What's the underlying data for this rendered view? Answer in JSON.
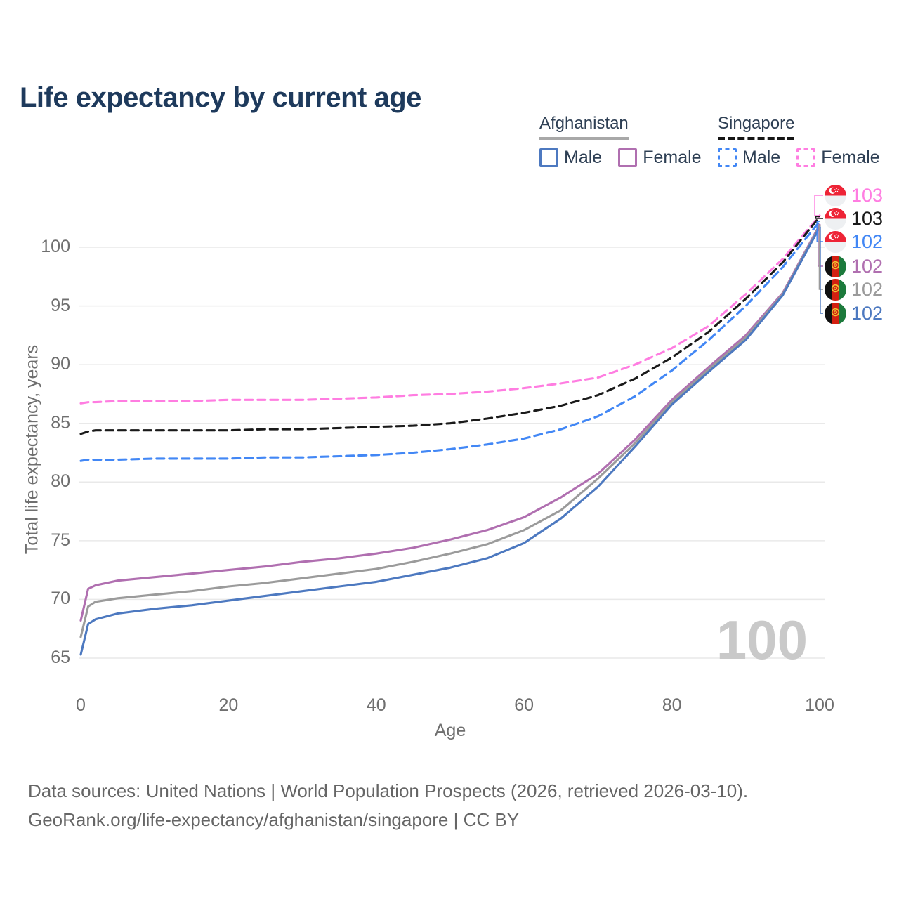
{
  "title": "Life expectancy by current age",
  "legend": {
    "groups": [
      {
        "id": "afghanistan",
        "label": "Afghanistan",
        "line_style": "solid",
        "underline_color": "#a8a8a8",
        "items": [
          {
            "label": "Male",
            "color": "#4d79c0",
            "dash": false
          },
          {
            "label": "Female",
            "color": "#b06fb0",
            "dash": false
          }
        ]
      },
      {
        "id": "singapore",
        "label": "Singapore",
        "line_style": "dashed",
        "underline_color": "#161616",
        "items": [
          {
            "label": "Male",
            "color": "#4287f5",
            "dash": true
          },
          {
            "label": "Female",
            "color": "#ff7de1",
            "dash": true
          }
        ]
      }
    ]
  },
  "watermark_age": "100",
  "footer": {
    "line1": "Data sources: United Nations | World Population Prospects (2026, retrieved 2026-03-10).",
    "line2": "GeoRank.org/life-expectancy/afghanistan/singapore | CC BY"
  },
  "chart_data": {
    "type": "line",
    "title": "Life expectancy by current age",
    "xlabel": "Age",
    "ylabel": "Total life expectancy, years",
    "xlim": [
      0,
      100
    ],
    "ylim": [
      63.5,
      103.5
    ],
    "x_ticks": [
      0,
      20,
      40,
      60,
      80,
      100
    ],
    "y_ticks": [
      65,
      70,
      75,
      80,
      85,
      90,
      95,
      100
    ],
    "grid": "horizontal",
    "legend_position": "top-right",
    "x": [
      0,
      1,
      2,
      5,
      10,
      15,
      20,
      25,
      30,
      35,
      40,
      45,
      50,
      55,
      60,
      65,
      70,
      75,
      80,
      85,
      90,
      95,
      100
    ],
    "series": [
      {
        "id": "sg-female",
        "name": "Singapore Female",
        "country": "Singapore",
        "sex": "Female",
        "flag": "sg",
        "color": "#ff7de1",
        "dash": true,
        "end_label": "103",
        "values": [
          86.7,
          86.8,
          86.8,
          86.9,
          86.9,
          86.9,
          87.0,
          87.0,
          87.0,
          87.1,
          87.2,
          87.4,
          87.5,
          87.7,
          88.0,
          88.4,
          88.9,
          90.0,
          91.4,
          93.3,
          96.0,
          99.0,
          102.7
        ]
      },
      {
        "id": "sg-both",
        "name": "Singapore Both sexes",
        "country": "Singapore",
        "sex": "Both sexes",
        "flag": "sg",
        "color": "#1a1a1a",
        "dash": true,
        "end_label": "103",
        "values": [
          84.1,
          84.3,
          84.4,
          84.4,
          84.4,
          84.4,
          84.4,
          84.5,
          84.5,
          84.6,
          84.7,
          84.8,
          85.0,
          85.4,
          85.9,
          86.5,
          87.4,
          88.8,
          90.6,
          92.8,
          95.6,
          98.7,
          102.6
        ]
      },
      {
        "id": "sg-male",
        "name": "Singapore Male",
        "country": "Singapore",
        "sex": "Male",
        "flag": "sg",
        "color": "#4287f5",
        "dash": true,
        "end_label": "102",
        "values": [
          81.8,
          81.9,
          81.9,
          81.9,
          82.0,
          82.0,
          82.0,
          82.1,
          82.1,
          82.2,
          82.3,
          82.5,
          82.8,
          83.2,
          83.7,
          84.5,
          85.6,
          87.3,
          89.5,
          92.1,
          95.0,
          98.3,
          102.2
        ]
      },
      {
        "id": "af-female",
        "name": "Afghanistan Female",
        "country": "Afghanistan",
        "sex": "Female",
        "flag": "af",
        "color": "#b06fb0",
        "dash": false,
        "end_label": "102",
        "values": [
          68.2,
          70.9,
          71.2,
          71.6,
          71.9,
          72.2,
          72.5,
          72.8,
          73.2,
          73.5,
          73.9,
          74.4,
          75.1,
          75.9,
          77.0,
          78.7,
          80.7,
          83.6,
          87.0,
          89.8,
          92.5,
          96.1,
          101.9
        ]
      },
      {
        "id": "af-both",
        "name": "Afghanistan Both sexes",
        "country": "Afghanistan",
        "sex": "Both sexes",
        "flag": "af",
        "color": "#9b9b9b",
        "dash": false,
        "end_label": "102",
        "values": [
          66.8,
          69.4,
          69.8,
          70.1,
          70.4,
          70.7,
          71.1,
          71.4,
          71.8,
          72.2,
          72.6,
          73.2,
          73.9,
          74.7,
          75.9,
          77.6,
          80.3,
          83.3,
          86.8,
          89.6,
          92.3,
          96.0,
          101.8
        ]
      },
      {
        "id": "af-male",
        "name": "Afghanistan Male",
        "country": "Afghanistan",
        "sex": "Male",
        "flag": "af",
        "color": "#4d79c0",
        "dash": false,
        "end_label": "102",
        "values": [
          65.3,
          67.9,
          68.3,
          68.8,
          69.2,
          69.5,
          69.9,
          70.3,
          70.7,
          71.1,
          71.5,
          72.1,
          72.7,
          73.5,
          74.8,
          76.9,
          79.6,
          83.0,
          86.6,
          89.4,
          92.1,
          95.9,
          101.7
        ]
      }
    ]
  }
}
